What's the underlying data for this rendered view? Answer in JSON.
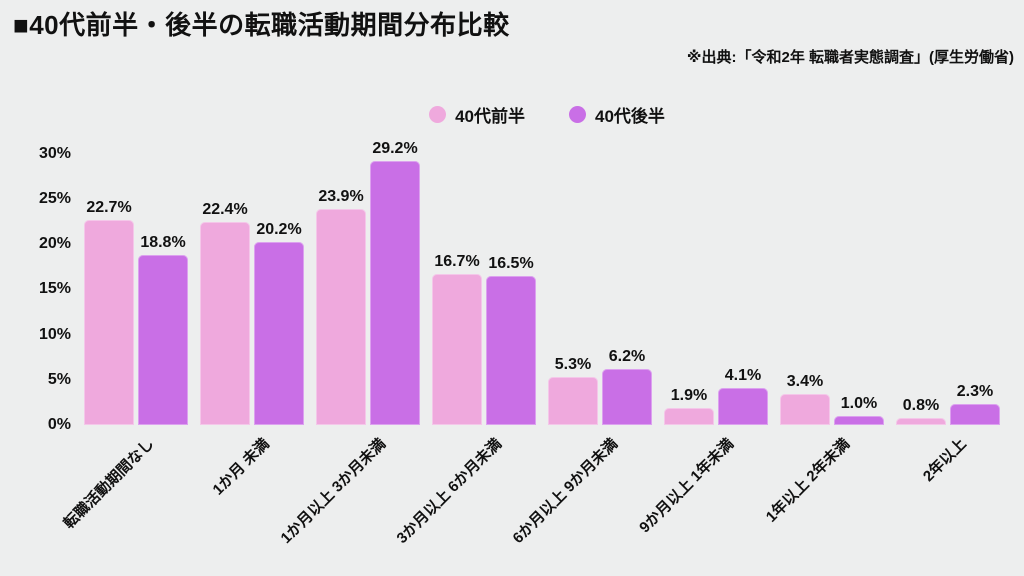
{
  "title": "■40代前半・後半の転職活動期間分布比較",
  "source_note": "※出典:「令和2年 転職者実態調査」(厚生労働省)",
  "colors": {
    "background": "#EDEEEE",
    "early40s": "#EFA9DD",
    "late40s": "#C96FE6",
    "text": "#111111"
  },
  "legend": [
    {
      "key": "early40s",
      "label": "40代前半",
      "color": "#EFA9DD"
    },
    {
      "key": "late40s",
      "label": "40代後半",
      "color": "#C96FE6"
    }
  ],
  "chart_data": {
    "type": "bar",
    "title": "40代前半・後半の転職活動期間分布比較",
    "xlabel": "",
    "ylabel": "",
    "ylim": [
      0,
      30
    ],
    "grid": false,
    "legend_position": "top-center",
    "value_label_suffix": "%",
    "value_label_decimals": 1,
    "y_ticks": [
      {
        "value": 0,
        "label": "0%"
      },
      {
        "value": 5,
        "label": "5%"
      },
      {
        "value": 10,
        "label": "10%"
      },
      {
        "value": 15,
        "label": "15%"
      },
      {
        "value": 20,
        "label": "20%"
      },
      {
        "value": 25,
        "label": "25%"
      },
      {
        "value": 30,
        "label": "30%"
      }
    ],
    "categories": [
      "転職活動期間なし",
      "1か月 未満",
      "1か月以上 3か月未満",
      "3か月以上 6か月未満",
      "6か月以上 9か月未満",
      "9か月以上 1年未満",
      "1年以上 2年未満",
      "2年以上"
    ],
    "series": [
      {
        "key": "early40s",
        "name": "40代前半",
        "color": "#EFA9DD",
        "values": [
          22.7,
          22.4,
          23.9,
          16.7,
          5.3,
          1.9,
          3.4,
          0.8
        ]
      },
      {
        "key": "late40s",
        "name": "40代後半",
        "color": "#C96FE6",
        "values": [
          18.8,
          20.2,
          29.2,
          16.5,
          6.2,
          4.1,
          1.0,
          2.3
        ]
      }
    ]
  }
}
